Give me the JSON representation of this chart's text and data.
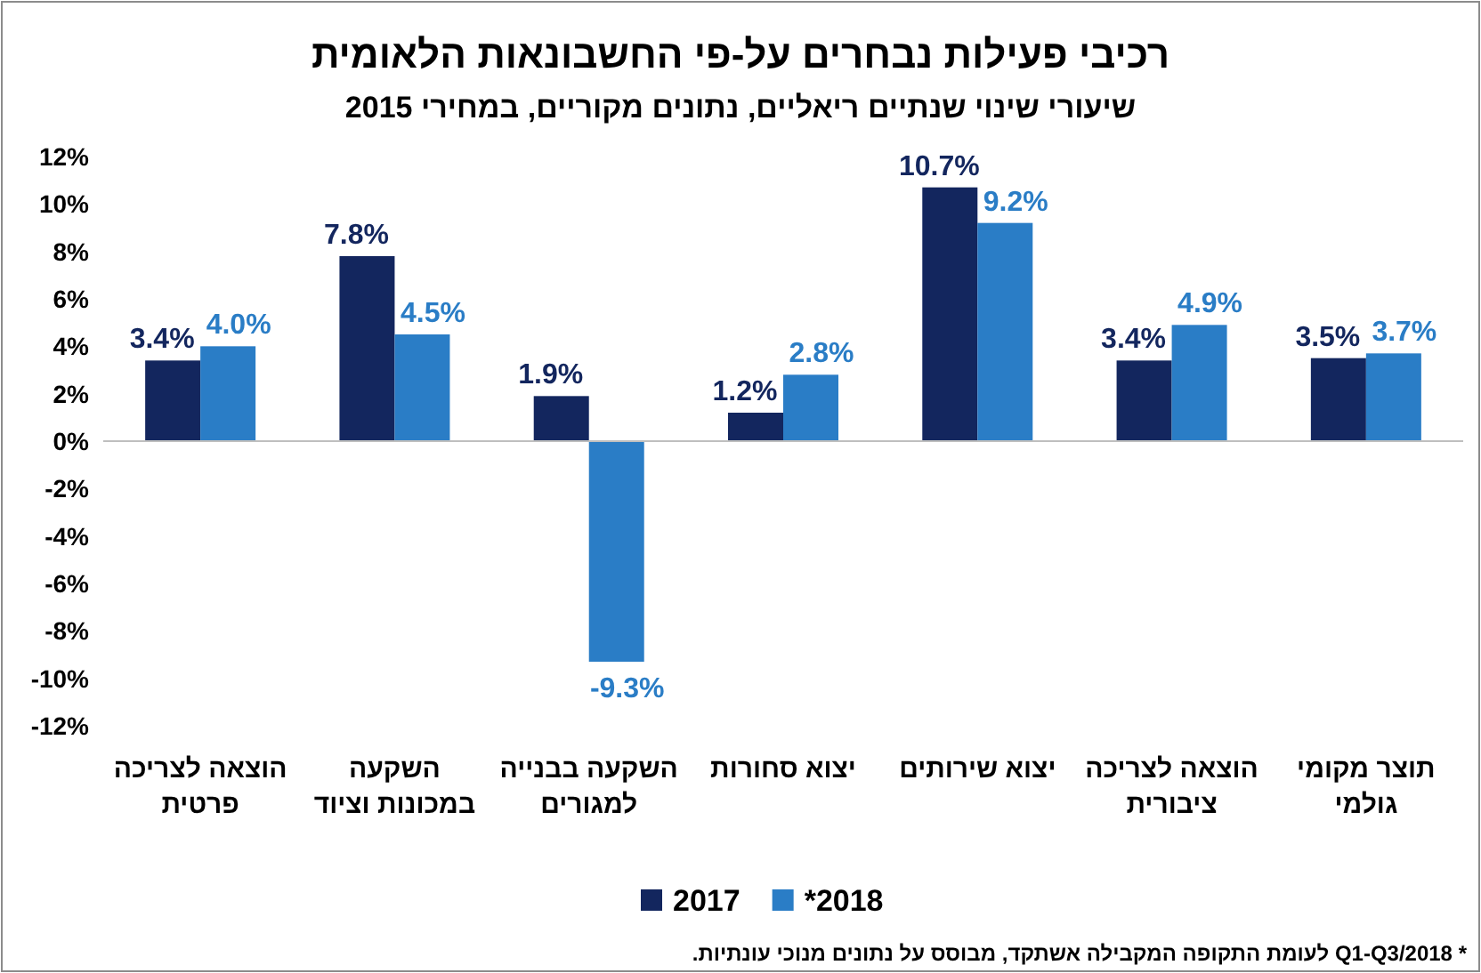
{
  "chart_data": {
    "type": "bar",
    "title": "רכיבי פעילות נבחרים על-פי החשבונאות הלאומית",
    "subtitle": "שיעורי שינוי שנתיים ריאליים, נתונים מקוריים, במחירי 2015",
    "categories": [
      "הוצאה לצריכה פרטית",
      "השקעה במכונות וציוד",
      "השקעה בבנייה למגורים",
      "יצוא סחורות",
      "יצוא שירותים",
      "הוצאה לצריכה ציבורית",
      "תוצר מקומי גולמי"
    ],
    "series": [
      {
        "name": "2017",
        "color": "#13265e",
        "values": [
          3.4,
          7.8,
          1.9,
          1.2,
          10.7,
          3.4,
          3.5
        ],
        "value_labels": [
          "3.4%",
          "7.8%",
          "1.9%",
          "1.2%",
          "10.7%",
          "3.4%",
          "3.5%"
        ]
      },
      {
        "name": "*2018",
        "color": "#2a7dc6",
        "values": [
          4.0,
          4.5,
          -9.3,
          2.8,
          9.2,
          4.9,
          3.7
        ],
        "value_labels": [
          "4.0%",
          "4.5%",
          "-9.3%",
          "2.8%",
          "9.2%",
          "4.9%",
          "3.7%"
        ]
      }
    ],
    "ylim": [
      -12,
      12
    ],
    "yticks": [
      {
        "value": -12,
        "label": "-12%"
      },
      {
        "value": -10,
        "label": "-10%"
      },
      {
        "value": -8,
        "label": "-8%"
      },
      {
        "value": -6,
        "label": "-6%"
      },
      {
        "value": -4,
        "label": "-4%"
      },
      {
        "value": -2,
        "label": "-2%"
      },
      {
        "value": 0,
        "label": "0%"
      },
      {
        "value": 2,
        "label": "2%"
      },
      {
        "value": 4,
        "label": "4%"
      },
      {
        "value": 6,
        "label": "6%"
      },
      {
        "value": 8,
        "label": "8%"
      },
      {
        "value": 10,
        "label": "10%"
      },
      {
        "value": 12,
        "label": "12%"
      }
    ],
    "legend": "bottom",
    "annotations": [
      "* Q1-Q3/2018 לעומת התקופה המקבילה אשתקד, מבוסס על נתונים מנוכי עונתיות."
    ]
  }
}
